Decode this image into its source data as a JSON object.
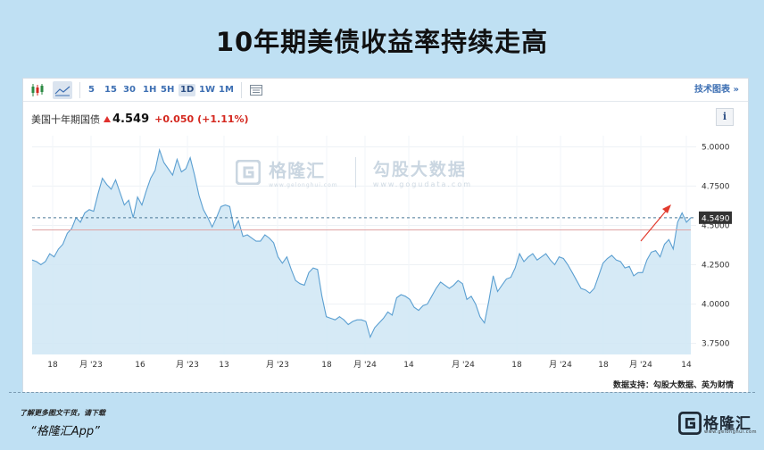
{
  "page": {
    "title": "10年期美债收益率持续走高"
  },
  "toolbar": {
    "periods": [
      "5",
      "15",
      "30",
      "1H",
      "5H",
      "1D",
      "1W",
      "1M"
    ],
    "active_period": "1D",
    "tech_label": "技术图表 »"
  },
  "quote": {
    "name": "美国十年期国债",
    "price": "4.549",
    "change": "+0.050",
    "change_pct": "(+1.11%)"
  },
  "watermark": {
    "brand": "格隆汇",
    "brand_url": "www.gelonghui.com",
    "provider": "勾股大数据",
    "provider_url": "www.gogudata.com"
  },
  "source_text": "数据支持：勾股大数据、英为财情",
  "footer": {
    "note": "了解更多图文干货，请下载",
    "app": "“格隆汇App”",
    "logo_text": "格隆汇",
    "logo_url": "www.gelonghui.com"
  },
  "colors": {
    "line": "#5b9fd1",
    "fill": "#cfe6f5",
    "last_line": "#e0a3a3",
    "dashed": "#4a7796",
    "up": "#d4281f",
    "arrow": "#e23b2e"
  },
  "chart_data": {
    "type": "area",
    "ylim": [
      3.68,
      5.07
    ],
    "yticks": [
      "5.0000",
      "4.7500",
      "4.5000",
      "4.2500",
      "4.0000",
      "3.7500"
    ],
    "ytick_values": [
      5.0,
      4.75,
      4.5,
      4.25,
      4.0,
      3.75
    ],
    "xticks": [
      "18",
      "月 '23",
      "16",
      "月 '23",
      "13",
      "月 '23",
      "18",
      "月 '24",
      "14",
      "月 '24",
      "18",
      "月 '24",
      "18",
      "月 '24",
      "14"
    ],
    "last_value_label": "4.5490",
    "last_value": 4.549,
    "reference_value": 4.5,
    "grid": true,
    "values": [
      4.28,
      4.27,
      4.25,
      4.27,
      4.32,
      4.3,
      4.35,
      4.38,
      4.45,
      4.48,
      4.55,
      4.52,
      4.58,
      4.6,
      4.59,
      4.7,
      4.8,
      4.76,
      4.73,
      4.79,
      4.71,
      4.63,
      4.66,
      4.55,
      4.68,
      4.63,
      4.72,
      4.8,
      4.85,
      4.98,
      4.9,
      4.86,
      4.82,
      4.92,
      4.84,
      4.86,
      4.93,
      4.82,
      4.69,
      4.6,
      4.55,
      4.49,
      4.55,
      4.62,
      4.63,
      4.62,
      4.48,
      4.53,
      4.43,
      4.44,
      4.42,
      4.4,
      4.4,
      4.44,
      4.42,
      4.39,
      4.3,
      4.26,
      4.3,
      4.22,
      4.15,
      4.13,
      4.12,
      4.2,
      4.23,
      4.22,
      4.05,
      3.92,
      3.91,
      3.9,
      3.92,
      3.9,
      3.87,
      3.89,
      3.9,
      3.9,
      3.89,
      3.79,
      3.85,
      3.88,
      3.91,
      3.95,
      3.93,
      4.04,
      4.06,
      4.05,
      4.03,
      3.98,
      3.96,
      3.99,
      4.0,
      4.05,
      4.1,
      4.14,
      4.12,
      4.1,
      4.12,
      4.15,
      4.13,
      4.03,
      4.05,
      4.0,
      3.92,
      3.88,
      4.02,
      4.18,
      4.08,
      4.12,
      4.16,
      4.17,
      4.23,
      4.32,
      4.27,
      4.3,
      4.32,
      4.28,
      4.3,
      4.32,
      4.28,
      4.25,
      4.3,
      4.29,
      4.25,
      4.2,
      4.15,
      4.1,
      4.09,
      4.07,
      4.1,
      4.18,
      4.26,
      4.29,
      4.31,
      4.28,
      4.27,
      4.23,
      4.24,
      4.18,
      4.2,
      4.2,
      4.28,
      4.33,
      4.34,
      4.3,
      4.38,
      4.41,
      4.35,
      4.52,
      4.58,
      4.52,
      4.55
    ]
  }
}
